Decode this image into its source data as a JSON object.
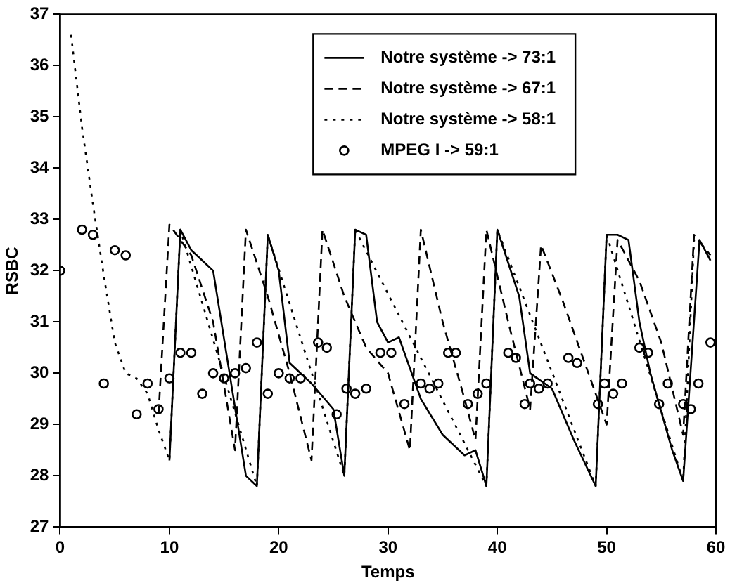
{
  "chart_data": {
    "type": "line",
    "xlabel": "Temps",
    "ylabel": "RSBC",
    "xlim": [
      0,
      60
    ],
    "xticks": [
      0,
      10,
      20,
      30,
      40,
      50,
      60
    ],
    "ylim": [
      27,
      37
    ],
    "yticks": [
      27,
      28,
      29,
      30,
      31,
      32,
      33,
      34,
      35,
      36,
      37
    ],
    "grid": false,
    "legend": "top",
    "series": [
      {
        "name": "Notre système -> 73:1",
        "color": "#000000",
        "line_style": "solid",
        "marker": "none",
        "x": [
          10,
          11,
          12,
          13,
          14,
          15.5,
          17,
          18,
          19,
          20,
          21,
          23,
          25,
          26,
          27,
          28,
          29,
          30,
          31,
          33,
          35,
          37,
          38,
          39,
          40,
          42,
          43,
          45,
          47,
          49,
          50,
          51,
          52,
          53,
          54,
          56,
          57,
          58.5,
          59.5
        ],
        "values": [
          28.3,
          32.8,
          32.4,
          32.2,
          32.0,
          30.0,
          28.0,
          27.8,
          32.7,
          32.0,
          30.2,
          29.8,
          29.3,
          28.0,
          32.8,
          32.7,
          31.0,
          30.6,
          30.7,
          29.5,
          28.8,
          28.4,
          28.5,
          27.8,
          32.8,
          31.5,
          30.0,
          29.7,
          28.7,
          27.8,
          32.7,
          32.7,
          32.6,
          31.0,
          30.0,
          28.5,
          27.9,
          32.6,
          32.2
        ]
      },
      {
        "name": "Notre système -> 67:1",
        "color": "#000000",
        "line_style": "dashed",
        "marker": "none",
        "x": [
          9,
          10,
          12,
          14,
          16,
          17,
          19,
          21,
          23,
          24,
          26,
          28,
          30,
          32,
          33,
          35,
          37,
          38,
          39,
          41,
          43,
          44,
          46,
          48,
          50,
          51,
          53,
          55,
          57,
          58,
          59.5
        ],
        "values": [
          29.2,
          32.9,
          32.3,
          31.0,
          28.5,
          32.8,
          31.5,
          30.0,
          28.3,
          32.8,
          31.5,
          30.5,
          30.0,
          28.5,
          32.8,
          31.0,
          29.5,
          28.7,
          32.8,
          31.0,
          29.3,
          32.5,
          31.4,
          30.2,
          29.0,
          32.6,
          31.8,
          30.6,
          28.8,
          32.7,
          32.3
        ]
      },
      {
        "name": "Notre système -> 58:1",
        "color": "#000000",
        "line_style": "dotted",
        "marker": "none",
        "x": [
          1,
          2,
          3,
          4,
          5,
          6,
          7,
          8,
          9,
          10,
          11,
          18,
          19,
          26,
          27,
          39,
          40,
          49,
          50,
          57,
          58
        ],
        "values": [
          36.6,
          34.8,
          33.3,
          31.9,
          30.6,
          30.0,
          29.9,
          29.6,
          28.9,
          28.3,
          32.8,
          27.8,
          32.7,
          28.0,
          32.8,
          27.8,
          32.8,
          27.8,
          32.7,
          27.9,
          32.6
        ]
      },
      {
        "name": "MPEG I -> 59:1",
        "color": "#000000",
        "type": "scatter",
        "marker": "circle",
        "x": [
          0,
          2,
          3,
          4,
          5,
          6,
          7,
          8,
          9,
          10,
          11,
          12,
          13,
          14,
          15,
          16,
          17,
          18,
          19,
          20,
          21,
          22,
          23.6,
          24.4,
          25.3,
          26.2,
          27,
          28,
          29.3,
          30.3,
          31.5,
          33,
          33.8,
          34.6,
          35.5,
          36.2,
          37.3,
          38.2,
          39,
          41,
          41.7,
          42.5,
          43,
          43.8,
          44.6,
          46.5,
          47.3,
          49.2,
          49.8,
          50.6,
          51.4,
          53,
          53.8,
          54.8,
          55.6,
          57,
          57.7,
          58.4,
          59.5
        ],
        "values": [
          32.0,
          32.8,
          32.7,
          29.8,
          32.4,
          32.3,
          29.2,
          29.8,
          29.3,
          29.9,
          30.4,
          30.4,
          29.6,
          30.0,
          29.9,
          30.0,
          30.1,
          30.6,
          29.6,
          30.0,
          29.9,
          29.9,
          30.6,
          30.5,
          29.2,
          29.7,
          29.6,
          29.7,
          30.4,
          30.4,
          29.4,
          29.8,
          29.7,
          29.8,
          30.4,
          30.4,
          29.4,
          29.6,
          29.8,
          30.4,
          30.3,
          29.4,
          29.8,
          29.7,
          29.8,
          30.3,
          30.2,
          29.4,
          29.8,
          29.6,
          29.8,
          30.5,
          30.4,
          29.4,
          29.8,
          29.4,
          29.3,
          29.8,
          30.6
        ]
      }
    ]
  }
}
